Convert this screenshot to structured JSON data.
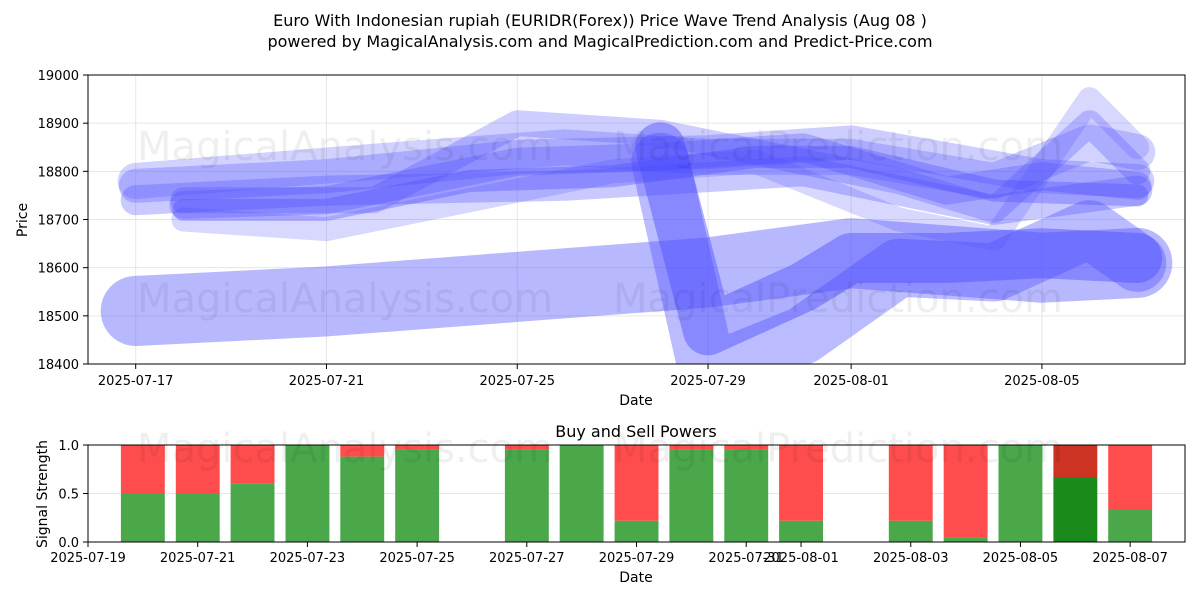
{
  "page": {
    "title_line1": "Euro With Indonesian rupiah (EURIDR(Forex)) Price Wave Trend Analysis (Aug 08 )",
    "title_line2": "powered by MagicalAnalysis.com and MagicalPrediction.com and Predict-Price.com",
    "watermark_left": "MagicalAnalysis.com",
    "watermark_right": "MagicalPrediction.com"
  },
  "colors": {
    "wave": "#4d4dff",
    "buy": "#4aa84a",
    "sell": "#ff4d4d",
    "buy_highlight": "#1a8a1a",
    "sell_highlight": "#cc3322"
  },
  "chart_data": [
    {
      "type": "line",
      "title": "",
      "xlabel": "Date",
      "ylabel": "Price",
      "x_range": [
        "2025-07-16",
        "2025-08-08"
      ],
      "ylim": [
        18400,
        19000
      ],
      "x_ticks": [
        "2025-07-17",
        "2025-07-21",
        "2025-07-25",
        "2025-07-29",
        "2025-08-01",
        "2025-08-05"
      ],
      "y_ticks": [
        18400,
        18500,
        18600,
        18700,
        18800,
        18900,
        19000
      ],
      "grid": true,
      "series": [
        {
          "x": [
            "2025-07-17",
            "2025-07-21",
            "2025-07-25",
            "2025-07-29",
            "2025-08-01",
            "2025-08-05",
            "2025-08-07"
          ],
          "values": [
            18770,
            18790,
            18830,
            18840,
            18860,
            18790,
            18780
          ]
        },
        {
          "x": [
            "2025-07-18",
            "2025-07-21",
            "2025-07-24",
            "2025-07-27",
            "2025-07-30",
            "2025-08-01",
            "2025-08-04",
            "2025-08-07"
          ],
          "values": [
            18720,
            18720,
            18780,
            18790,
            18830,
            18830,
            18760,
            18750
          ]
        },
        {
          "x": [
            "2025-07-18",
            "2025-07-21",
            "2025-07-25",
            "2025-07-28",
            "2025-07-31",
            "2025-08-03",
            "2025-08-05",
            "2025-08-07"
          ],
          "values": [
            18730,
            18740,
            18820,
            18830,
            18850,
            18760,
            18790,
            18770
          ]
        },
        {
          "x": [
            "2025-07-18",
            "2025-07-22",
            "2025-07-25",
            "2025-07-28",
            "2025-07-31",
            "2025-08-02",
            "2025-08-04",
            "2025-08-06",
            "2025-08-07"
          ],
          "values": [
            18740,
            18740,
            18900,
            18880,
            18820,
            18780,
            18720,
            18900,
            18800
          ]
        },
        {
          "x": [
            "2025-07-17",
            "2025-07-22",
            "2025-07-26",
            "2025-07-29",
            "2025-08-01",
            "2025-08-04",
            "2025-08-06",
            "2025-08-07"
          ],
          "values": [
            18780,
            18820,
            18850,
            18830,
            18830,
            18780,
            18860,
            18840
          ]
        },
        {
          "x": [
            "2025-07-17",
            "2025-07-21",
            "2025-07-25",
            "2025-07-29",
            "2025-08-01",
            "2025-08-05",
            "2025-08-07"
          ],
          "values": [
            18510,
            18530,
            18560,
            18590,
            18630,
            18600,
            18610
          ]
        },
        {
          "x": [
            "2025-07-28",
            "2025-07-29",
            "2025-07-31",
            "2025-08-01",
            "2025-08-03",
            "2025-08-05",
            "2025-08-07"
          ],
          "values": [
            18850,
            18470,
            18560,
            18620,
            18620,
            18630,
            18620
          ]
        },
        {
          "x": [
            "2025-07-28",
            "2025-07-29",
            "2025-07-31",
            "2025-08-02",
            "2025-08-04",
            "2025-08-06",
            "2025-08-07"
          ],
          "values": [
            18820,
            18380,
            18460,
            18600,
            18590,
            18680,
            18610
          ]
        },
        {
          "x": [
            "2025-07-17",
            "2025-07-21",
            "2025-07-26",
            "2025-07-31",
            "2025-08-04",
            "2025-08-07"
          ],
          "values": [
            18740,
            18760,
            18770,
            18800,
            18720,
            18760
          ]
        },
        {
          "x": [
            "2025-07-18",
            "2025-07-21",
            "2025-07-24",
            "2025-07-27",
            "2025-07-30",
            "2025-08-02",
            "2025-08-04",
            "2025-08-06",
            "2025-08-07"
          ],
          "values": [
            18700,
            18680,
            18740,
            18800,
            18820,
            18700,
            18660,
            18950,
            18850
          ]
        }
      ]
    },
    {
      "type": "bar",
      "title": "Buy and Sell Powers",
      "xlabel": "Date",
      "ylabel": "Signal Strength",
      "x_range": [
        "2025-07-19",
        "2025-08-08"
      ],
      "ylim": [
        0,
        1
      ],
      "x_ticks": [
        "2025-07-19",
        "2025-07-21",
        "2025-07-23",
        "2025-07-25",
        "2025-07-27",
        "2025-07-29",
        "2025-07-31",
        "2025-08-01",
        "2025-08-03",
        "2025-08-05",
        "2025-08-07"
      ],
      "y_ticks": [
        "0.0",
        "0.5",
        "1.0"
      ],
      "grid": true,
      "categories": [
        "2025-07-20",
        "2025-07-21",
        "2025-07-22",
        "2025-07-23",
        "2025-07-24",
        "2025-07-25",
        "2025-07-27",
        "2025-07-28",
        "2025-07-29",
        "2025-07-30",
        "2025-07-31",
        "2025-08-01",
        "2025-08-03",
        "2025-08-04",
        "2025-08-05",
        "2025-08-06",
        "2025-08-07"
      ],
      "series": [
        {
          "name": "",
          "values": [
            0.5,
            0.5,
            0.6,
            1.0,
            0.88,
            0.95,
            0.95,
            1.0,
            0.22,
            0.95,
            0.95,
            0.22,
            0.22,
            0.05,
            1.0,
            0.67,
            0.33
          ]
        },
        {
          "name": "",
          "values": [
            0.5,
            0.5,
            0.4,
            0.0,
            0.12,
            0.05,
            0.05,
            0.0,
            0.78,
            0.05,
            0.05,
            0.78,
            0.78,
            0.95,
            0.0,
            0.33,
            0.67
          ]
        }
      ],
      "highlight_index": 15
    }
  ]
}
